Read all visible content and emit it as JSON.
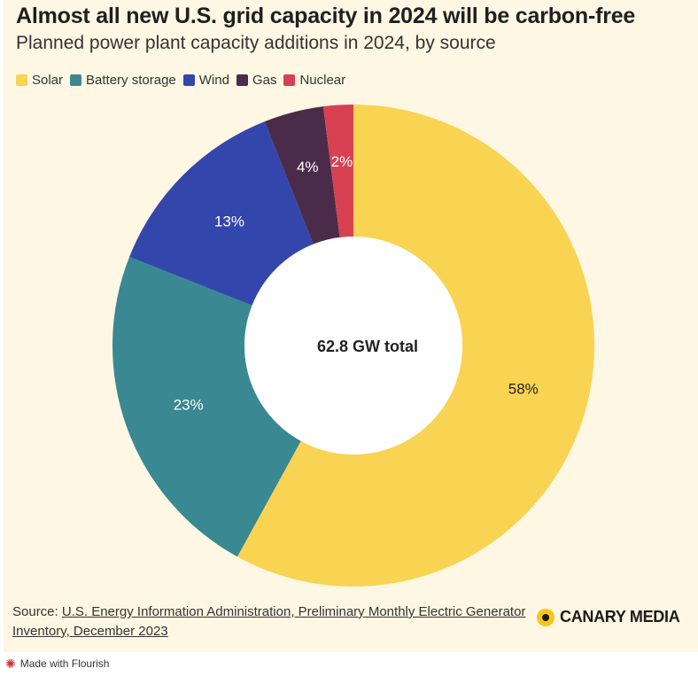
{
  "header": {
    "title": "Almost all new U.S. grid capacity in 2024 will be carbon-free",
    "subtitle": "Planned power plant capacity additions in 2024, by source"
  },
  "chart_data": {
    "type": "pie",
    "title": "Almost all new U.S. grid capacity in 2024 will be carbon-free",
    "subtitle": "Planned power plant capacity additions in 2024, by source",
    "legend_position": "top-left",
    "center_label": "62.8 GW total",
    "slices": [
      {
        "name": "Solar",
        "value": 58,
        "label": "58%",
        "color": "#f9d352",
        "label_color": "#222222"
      },
      {
        "name": "Battery storage",
        "value": 23,
        "label": "23%",
        "color": "#3a8891",
        "label_color": "#ffffff"
      },
      {
        "name": "Wind",
        "value": 13,
        "label": "13%",
        "color": "#3346ac",
        "label_color": "#ffffff"
      },
      {
        "name": "Gas",
        "value": 4,
        "label": "4%",
        "color": "#4a2c4a",
        "label_color": "#ffffff"
      },
      {
        "name": "Nuclear",
        "value": 2,
        "label": "2%",
        "color": "#d84152",
        "label_color": "#ffffff"
      }
    ]
  },
  "footer": {
    "source_prefix": "Source: ",
    "source_text": "U.S. Energy Information Administration, Preliminary Monthly Electric Generator Inventory, December 2023",
    "logo": "CANARY MEDIA",
    "made_with": "Made with Flourish"
  },
  "colors": {
    "background": "#fdf7e4"
  }
}
